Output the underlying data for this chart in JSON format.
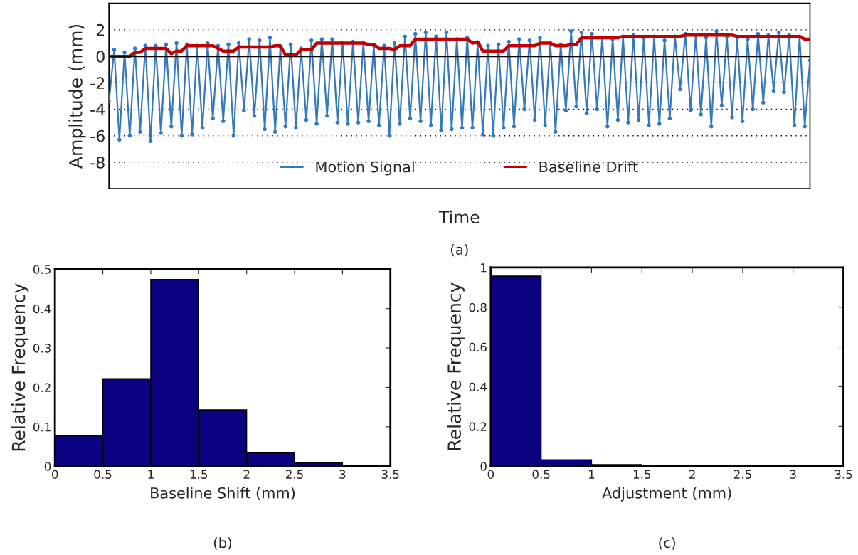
{
  "chart_data": [
    {
      "type": "line",
      "xlabel": "Time",
      "ylabel": "Amplitude (mm)",
      "tick_labels": "y",
      "grid": "y",
      "legend": "bottom",
      "ylim": [
        -10,
        4
      ],
      "yticks": [
        -8,
        -6,
        -4,
        -2,
        0,
        2
      ],
      "categories": [
        null,
        null,
        null,
        null,
        null,
        null,
        null,
        null,
        null,
        null,
        null,
        null,
        null,
        null,
        null,
        null,
        null,
        null,
        null,
        null,
        null,
        null,
        null,
        null,
        null,
        null,
        null,
        null,
        null,
        null,
        null,
        null,
        null,
        null,
        null,
        null,
        null,
        null,
        null,
        null,
        null,
        null,
        null,
        null,
        null,
        null,
        null,
        null,
        null,
        null,
        null,
        null,
        null,
        null,
        null,
        null,
        null,
        null,
        null,
        null,
        null,
        null,
        null,
        null,
        null,
        null,
        null,
        null,
        null,
        null,
        null,
        null,
        null,
        null,
        null,
        null,
        null,
        null,
        null,
        null,
        null,
        null,
        null,
        null,
        null,
        null,
        null,
        null,
        null,
        null,
        null,
        null,
        null,
        null,
        null,
        null,
        null,
        null,
        null,
        null,
        null,
        null,
        null,
        null,
        null,
        null,
        null,
        null,
        null,
        null,
        null,
        null,
        null,
        null,
        null,
        null,
        null,
        null,
        null,
        null,
        null,
        null,
        null,
        null,
        null,
        null,
        null,
        null,
        null,
        null,
        null,
        null,
        null,
        null,
        null,
        null
      ],
      "ref_lines": [
        {
          "axis": "y",
          "value": 0,
          "color": "#000000"
        }
      ],
      "series": [
        {
          "name": "Motion Signal",
          "color": "#3579ba",
          "marker": "circle",
          "values": [
            -3.4,
            0.5,
            -6.3,
            0.3,
            -6.0,
            0.6,
            -5.7,
            0.8,
            -6.4,
            0.8,
            -5.8,
            0.9,
            -5.3,
            1.0,
            -6.0,
            0.9,
            -5.9,
            0.8,
            -5.4,
            1.0,
            -4.7,
            0.8,
            -4.9,
            0.9,
            -6.0,
            1.0,
            -4.1,
            1.3,
            -4.5,
            1.2,
            -5.5,
            1.4,
            -5.7,
            0.7,
            -5.3,
            0.9,
            -5.4,
            0.6,
            -4.8,
            1.2,
            -5.1,
            1.3,
            -4.5,
            1.3,
            -5.0,
            1.0,
            -5.1,
            1.1,
            -5.0,
            1.0,
            -4.9,
            0.8,
            -5.2,
            0.8,
            -6.0,
            1.0,
            -5.1,
            1.5,
            -4.7,
            1.7,
            -4.9,
            1.8,
            -5.2,
            1.5,
            -5.6,
            1.8,
            -5.5,
            1.3,
            -5.4,
            1.4,
            -5.4,
            1.0,
            -5.9,
            0.8,
            -6.0,
            0.9,
            -5.4,
            1.1,
            -5.3,
            1.3,
            -4.0,
            1.2,
            -4.8,
            1.4,
            -5.2,
            1.0,
            -5.7,
            0.9,
            -4.1,
            1.9,
            -3.8,
            1.8,
            -4.3,
            1.7,
            -4.0,
            1.4,
            -5.3,
            1.3,
            -4.8,
            1.5,
            -5.0,
            1.6,
            -4.8,
            1.4,
            -5.2,
            1.5,
            -5.1,
            1.2,
            -4.7,
            1.5,
            -2.5,
            1.7,
            -4.1,
            1.6,
            -4.4,
            1.4,
            -5.3,
            1.9,
            -3.7,
            1.5,
            -4.6,
            1.4,
            -4.9,
            1.3,
            -4.0,
            1.7,
            -3.5,
            1.6,
            -2.6,
            1.8,
            -2.7,
            1.6,
            -5.2,
            1.5,
            -5.3,
            -0.3
          ]
        },
        {
          "name": "Baseline Drift",
          "color": "#c00000",
          "values": [
            0.0,
            0.0,
            0.0,
            0.0,
            0.0,
            0.3,
            0.3,
            0.6,
            0.6,
            0.6,
            0.6,
            0.6,
            0.2,
            0.4,
            0.4,
            0.8,
            0.8,
            0.8,
            0.8,
            0.8,
            0.8,
            0.6,
            0.4,
            0.4,
            0.4,
            0.7,
            0.7,
            0.7,
            0.7,
            0.7,
            0.7,
            0.7,
            0.8,
            0.8,
            0.1,
            0.1,
            0.1,
            0.5,
            0.5,
            0.5,
            1.0,
            1.0,
            1.0,
            1.0,
            1.0,
            1.0,
            1.0,
            1.0,
            1.0,
            1.0,
            0.9,
            0.9,
            0.6,
            0.6,
            0.6,
            0.5,
            0.8,
            0.8,
            0.8,
            1.3,
            1.3,
            1.3,
            1.3,
            1.3,
            1.3,
            1.3,
            1.3,
            1.3,
            1.3,
            1.3,
            1.0,
            1.1,
            0.4,
            0.4,
            0.4,
            0.4,
            0.4,
            0.8,
            0.8,
            0.8,
            0.8,
            0.8,
            0.8,
            1.0,
            1.0,
            1.0,
            0.8,
            0.8,
            0.8,
            0.9,
            0.9,
            1.4,
            1.4,
            1.4,
            1.4,
            1.4,
            1.4,
            1.4,
            1.4,
            1.5,
            1.5,
            1.5,
            1.5,
            1.5,
            1.5,
            1.5,
            1.5,
            1.5,
            1.5,
            1.5,
            1.5,
            1.6,
            1.6,
            1.6,
            1.6,
            1.6,
            1.6,
            1.6,
            1.6,
            1.6,
            1.6,
            1.5,
            1.5,
            1.5,
            1.5,
            1.5,
            1.5,
            1.5,
            1.5,
            1.5,
            1.5,
            1.5,
            1.5,
            1.5,
            1.3,
            1.3
          ]
        }
      ],
      "annotations": [
        "(a)"
      ]
    },
    {
      "type": "histogram",
      "xlabel": "Baseline Shift (mm)",
      "ylabel": "Relative Frequency",
      "color": "#0a0080",
      "bins": [
        0,
        0.5,
        1,
        1.5,
        2,
        2.5,
        3,
        3.5
      ],
      "values": [
        0.077,
        0.222,
        0.474,
        0.143,
        0.035,
        0.008,
        0.001
      ],
      "xlim": [
        0,
        3.5
      ],
      "xticks": [
        0,
        0.5,
        1,
        1.5,
        2,
        2.5,
        3,
        3.5
      ],
      "ylim": [
        0,
        0.5
      ],
      "yticks": [
        0,
        0.1,
        0.2,
        0.3,
        0.4,
        0.5
      ],
      "annotations": [
        "(b)"
      ]
    },
    {
      "type": "histogram",
      "xlabel": "Adjustment (mm)",
      "ylabel": "Relative Frequency",
      "color": "#0a0080",
      "bins": [
        0,
        0.5,
        1,
        1.5,
        2,
        2.5,
        3,
        3.5
      ],
      "values": [
        0.957,
        0.032,
        0.008,
        0.002,
        0.001,
        0.001,
        0.001
      ],
      "xlim": [
        0,
        3.5
      ],
      "xticks": [
        0,
        0.5,
        1,
        1.5,
        2,
        2.5,
        3,
        3.5
      ],
      "ylim": [
        0,
        1
      ],
      "yticks": [
        0,
        0.2,
        0.4,
        0.6,
        0.8,
        1
      ],
      "annotations": [
        "(c)"
      ]
    }
  ]
}
